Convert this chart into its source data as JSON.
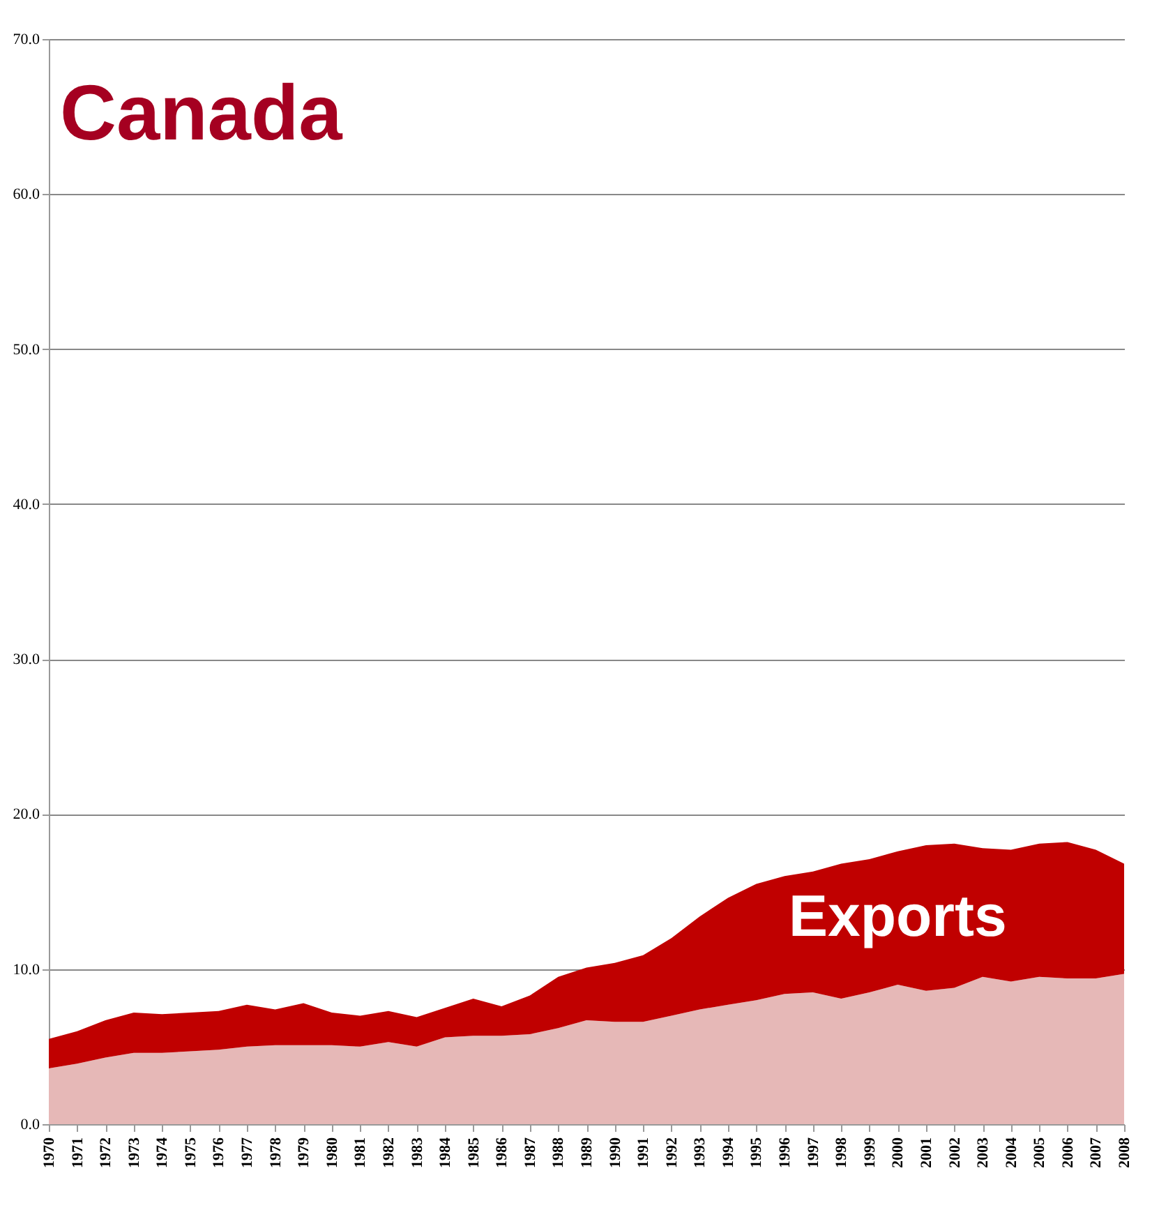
{
  "chart_data": {
    "type": "area",
    "title": "Canada",
    "stacked": true,
    "grid": "y",
    "categories": [
      "1970",
      "1971",
      "1972",
      "1973",
      "1974",
      "1975",
      "1976",
      "1977",
      "1978",
      "1979",
      "1980",
      "1981",
      "1982",
      "1983",
      "1984",
      "1985",
      "1986",
      "1987",
      "1988",
      "1989",
      "1990",
      "1991",
      "1992",
      "1993",
      "1994",
      "1995",
      "1996",
      "1997",
      "1998",
      "1999",
      "2000",
      "2001",
      "2002",
      "2003",
      "2004",
      "2005",
      "2006",
      "2007",
      "2008"
    ],
    "ylim": [
      0,
      70
    ],
    "yticks": [
      {
        "value": 0,
        "label": "0.0"
      },
      {
        "value": 10,
        "label": "10.0"
      },
      {
        "value": 20,
        "label": "20.0"
      },
      {
        "value": 30,
        "label": "30.0"
      },
      {
        "value": 40,
        "label": "40.0"
      },
      {
        "value": 50,
        "label": "50.0"
      },
      {
        "value": 60,
        "label": "60.0"
      },
      {
        "value": 70,
        "label": "70.0"
      }
    ],
    "series": [
      {
        "color": "#e6b8b7",
        "values": [
          3.6,
          3.9,
          4.3,
          4.6,
          4.6,
          4.7,
          4.8,
          5.0,
          5.1,
          5.1,
          5.1,
          5.0,
          5.3,
          5.0,
          5.6,
          5.7,
          5.7,
          5.8,
          6.2,
          6.7,
          6.6,
          6.6,
          7.0,
          7.4,
          7.7,
          8.0,
          8.4,
          8.5,
          8.1,
          8.5,
          9.0,
          8.6,
          8.8,
          9.5,
          9.2,
          9.5,
          9.4,
          9.4,
          9.7
        ]
      },
      {
        "name": "Exports",
        "color": "#c00000",
        "values": [
          1.9,
          2.1,
          2.4,
          2.6,
          2.5,
          2.5,
          2.5,
          2.7,
          2.3,
          2.7,
          2.1,
          2.0,
          2.0,
          1.9,
          1.9,
          2.4,
          1.9,
          2.5,
          3.3,
          3.4,
          3.8,
          4.3,
          5.0,
          6.0,
          6.9,
          7.5,
          7.6,
          7.8,
          8.7,
          8.6,
          8.6,
          9.4,
          9.3,
          8.3,
          8.5,
          8.6,
          8.8,
          8.3,
          7.1
        ]
      }
    ]
  }
}
